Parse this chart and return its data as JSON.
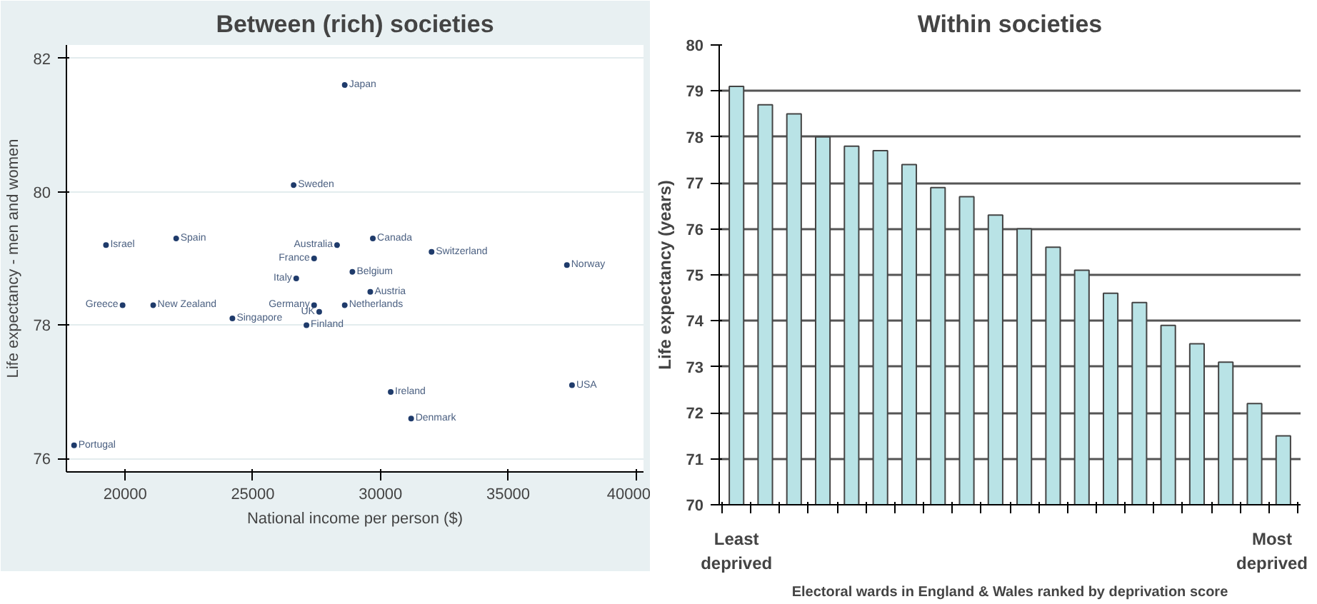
{
  "chart_data": [
    {
      "type": "scatter",
      "title": "Between (rich) societies",
      "xlabel": "National income per person ($)",
      "ylabel": "Life expectancy - men and women",
      "series": [
        {
          "color": "#1f3b6b",
          "x": [
            28600,
            26600,
            19250,
            22000,
            28300,
            29700,
            27400,
            32000,
            37300,
            26700,
            28900,
            29600,
            19900,
            21100,
            27400,
            27600,
            28600,
            24200,
            27100,
            30400,
            37500,
            31200,
            18000
          ],
          "values": [
            81.6,
            80.1,
            79.2,
            79.3,
            79.2,
            79.3,
            79.0,
            79.1,
            78.9,
            78.7,
            78.8,
            78.5,
            78.3,
            78.3,
            78.3,
            78.2,
            78.3,
            78.1,
            78.0,
            77.0,
            77.1,
            76.6,
            76.2
          ]
        }
      ],
      "annotations": [
        {
          "text": "Japan",
          "x": 28600,
          "y": 81.6
        },
        {
          "text": "Sweden",
          "x": 26600,
          "y": 80.1
        },
        {
          "text": "Israel",
          "x": 19250,
          "y": 79.2
        },
        {
          "text": "Spain",
          "x": 22000,
          "y": 79.3
        },
        {
          "text": "Australia",
          "x": 28300,
          "y": 79.2
        },
        {
          "text": "Canada",
          "x": 29700,
          "y": 79.3
        },
        {
          "text": "France",
          "x": 27400,
          "y": 79.0
        },
        {
          "text": "Switzerland",
          "x": 32000,
          "y": 79.1
        },
        {
          "text": "Norway",
          "x": 37300,
          "y": 78.9
        },
        {
          "text": "Italy",
          "x": 26700,
          "y": 78.7
        },
        {
          "text": "Belgium",
          "x": 28900,
          "y": 78.8
        },
        {
          "text": "Austria",
          "x": 29600,
          "y": 78.5
        },
        {
          "text": "Greece",
          "x": 19900,
          "y": 78.3
        },
        {
          "text": "New Zealand",
          "x": 21100,
          "y": 78.3
        },
        {
          "text": "Germany",
          "x": 27400,
          "y": 78.3
        },
        {
          "text": "UK",
          "x": 27600,
          "y": 78.2
        },
        {
          "text": "Netherlands",
          "x": 28600,
          "y": 78.3
        },
        {
          "text": "Singapore",
          "x": 24200,
          "y": 78.1
        },
        {
          "text": "Finland",
          "x": 27100,
          "y": 78.0
        },
        {
          "text": "Ireland",
          "x": 30400,
          "y": 77.0
        },
        {
          "text": "USA",
          "x": 37500,
          "y": 77.1
        },
        {
          "text": "Denmark",
          "x": 31200,
          "y": 76.6
        },
        {
          "text": "Portugal",
          "x": 18000,
          "y": 76.2
        }
      ],
      "xlim": [
        17700,
        40300
      ],
      "ylim": [
        75.8,
        82.2
      ],
      "xticks": [
        20000,
        25000,
        30000,
        35000,
        40000
      ],
      "yticks": [
        76,
        78,
        80,
        82
      ],
      "grid": "y",
      "marker": "circle"
    },
    {
      "type": "bar",
      "title": "Within societies",
      "xlabel": "Electoral wards in England & Wales ranked by deprivation score",
      "ylabel": "Life expectancy (years)",
      "categories": [
        "Least deprived",
        null,
        null,
        null,
        null,
        null,
        null,
        null,
        null,
        null,
        null,
        null,
        null,
        null,
        null,
        null,
        null,
        null,
        null,
        "Most deprived"
      ],
      "values": [
        79.1,
        78.7,
        78.5,
        78.0,
        77.8,
        77.7,
        77.4,
        76.9,
        76.7,
        76.3,
        76.0,
        75.6,
        75.1,
        74.6,
        74.4,
        73.9,
        73.5,
        73.1,
        72.2,
        71.5
      ],
      "color": "#b9e3e6",
      "ylim": [
        70,
        80
      ],
      "yticks": [
        70,
        71,
        72,
        73,
        74,
        75,
        76,
        77,
        78,
        79,
        80
      ],
      "grid": "y"
    }
  ]
}
